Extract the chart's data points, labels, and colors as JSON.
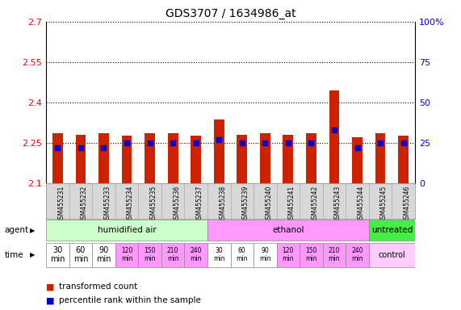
{
  "title": "GDS3707 / 1634986_at",
  "samples": [
    "GSM455231",
    "GSM455232",
    "GSM455233",
    "GSM455234",
    "GSM455235",
    "GSM455236",
    "GSM455237",
    "GSM455238",
    "GSM455239",
    "GSM455240",
    "GSM455241",
    "GSM455242",
    "GSM455243",
    "GSM455244",
    "GSM455245",
    "GSM455246"
  ],
  "transformed_count": [
    2.285,
    2.28,
    2.285,
    2.275,
    2.285,
    2.285,
    2.275,
    2.335,
    2.28,
    2.285,
    2.28,
    2.285,
    2.445,
    2.27,
    2.285,
    2.275
  ],
  "percentile_rank": [
    22,
    22,
    22,
    25,
    25,
    25,
    25,
    27,
    25,
    25,
    25,
    25,
    33,
    22,
    25,
    25
  ],
  "y_min": 2.1,
  "y_max": 2.7,
  "y_ticks": [
    2.1,
    2.25,
    2.4,
    2.55,
    2.7
  ],
  "y_tick_labels": [
    "2.1",
    "2.25",
    "2.4",
    "2.55",
    "2.7"
  ],
  "right_y_ticks": [
    0,
    25,
    50,
    75,
    100
  ],
  "right_y_labels": [
    "0",
    "25",
    "50",
    "75",
    "100%"
  ],
  "bar_color": "#cc2200",
  "dot_color": "#0000cc",
  "bar_bottom": 2.1,
  "agent_groups": [
    {
      "label": "humidified air",
      "start": 0,
      "end": 7,
      "color": "#ccffcc"
    },
    {
      "label": "ethanol",
      "start": 7,
      "end": 14,
      "color": "#ff99ff"
    },
    {
      "label": "untreated",
      "start": 14,
      "end": 16,
      "color": "#44ee44"
    }
  ],
  "time_labels": [
    "30\nmin",
    "60\nmin",
    "90\nmin",
    "120\nmin",
    "150\nmin",
    "210\nmin",
    "240\nmin",
    "30\nmin",
    "60\nmin",
    "90\nmin",
    "120\nmin",
    "150\nmin",
    "210\nmin",
    "240\nmin"
  ],
  "time_bg": [
    "#ffffff",
    "#ffffff",
    "#ffffff",
    "#ff99ff",
    "#ff99ff",
    "#ff99ff",
    "#ff99ff",
    "#ffffff",
    "#ffffff",
    "#ffffff",
    "#ff99ff",
    "#ff99ff",
    "#ff99ff",
    "#ff99ff"
  ],
  "control_label": "control",
  "control_bg": "#ffccff",
  "legend_bar_label": "transformed count",
  "legend_dot_label": "percentile rank within the sample",
  "agent_label": "agent",
  "time_label": "time",
  "grid_color": "#000000",
  "sample_bg": "#d8d8d8",
  "plot_bg": "#ffffff"
}
